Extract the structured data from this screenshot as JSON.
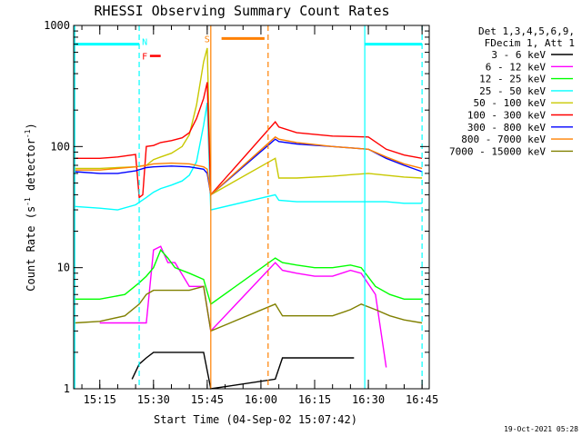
{
  "chart_data": {
    "type": "line",
    "title": "RHESSI Observing Summary Count Rates",
    "xlabel": "Start Time (04-Sep-02 15:07:42)",
    "ylabel": "Count Rate (s⁻¹ detector⁻¹)",
    "ylabel_parts": [
      "Count Rate (s",
      "-1",
      " detector",
      "-1",
      ")"
    ],
    "y_scale": "log",
    "ylim": [
      1,
      1000
    ],
    "y_ticks": [
      1,
      10,
      100,
      1000
    ],
    "y_tick_labels": [
      "1",
      "10",
      "100",
      "1000"
    ],
    "xlim": [
      "15:07:42",
      "16:47:00"
    ],
    "x_ticks": [
      "15:15",
      "15:30",
      "15:45",
      "16:00",
      "16:15",
      "16:30",
      "16:45"
    ],
    "x_tick_labels": [
      "15:15",
      "15:30",
      "15:45",
      "16:00",
      "16:15",
      "16:30",
      "16:45"
    ],
    "grid": false,
    "legend_position": "right",
    "legend_header": [
      "Det 1,3,4,5,6,9,",
      "FDecim 1, Att 1"
    ],
    "series": [
      {
        "name": "3 - 6 keV",
        "color": "#000000",
        "x": [
          "15:24",
          "15:26",
          "15:28",
          "15:30",
          "15:35",
          "15:40",
          "15:44",
          "15:46",
          "16:04",
          "16:06",
          "16:12",
          "16:20",
          "16:26"
        ],
        "y": [
          1.2,
          1.6,
          1.8,
          2.0,
          2.0,
          2.0,
          2.0,
          1.0,
          1.2,
          1.8,
          1.8,
          1.8,
          1.8
        ]
      },
      {
        "name": "6 - 12 keV",
        "color": "#ff00ff",
        "x": [
          "15:15",
          "15:22",
          "15:26",
          "15:28",
          "15:30",
          "15:32",
          "15:34",
          "15:36",
          "15:40",
          "15:44",
          "15:46",
          "16:04",
          "16:06",
          "16:10",
          "16:15",
          "16:20",
          "16:25",
          "16:28",
          "16:32",
          "16:35"
        ],
        "y": [
          3.5,
          3.5,
          3.5,
          3.5,
          14,
          15,
          11,
          11,
          7,
          7,
          3,
          11,
          9.5,
          9,
          8.5,
          8.5,
          9.5,
          9,
          6,
          1.5
        ]
      },
      {
        "name": "12 - 25 keV",
        "color": "#00ff00",
        "x": [
          "15:08",
          "15:15",
          "15:22",
          "15:26",
          "15:28",
          "15:30",
          "15:32",
          "15:34",
          "15:36",
          "15:40",
          "15:44",
          "15:46",
          "16:04",
          "16:06",
          "16:10",
          "16:15",
          "16:20",
          "16:25",
          "16:28",
          "16:32",
          "16:36",
          "16:40",
          "16:45"
        ],
        "y": [
          5.5,
          5.5,
          6,
          7.5,
          8.5,
          10,
          14,
          12,
          10,
          9,
          8,
          5,
          12,
          11,
          10.5,
          10,
          10,
          10.5,
          10,
          7,
          6,
          5.5,
          5.5
        ]
      },
      {
        "name": "25 - 50 keV",
        "color": "#00ffff",
        "x": [
          "15:08",
          "15:15",
          "15:20",
          "15:25",
          "15:28",
          "15:30",
          "15:32",
          "15:35",
          "15:38",
          "15:40",
          "15:42",
          "15:44",
          "15:45",
          "15:46",
          "16:04",
          "16:05",
          "16:10",
          "16:20",
          "16:30",
          "16:35",
          "16:40",
          "16:45"
        ],
        "y": [
          32,
          31,
          30,
          33,
          38,
          42,
          45,
          48,
          52,
          58,
          75,
          150,
          230,
          30,
          40,
          36,
          35,
          35,
          35,
          35,
          34,
          34
        ]
      },
      {
        "name": "50 - 100 keV",
        "color": "#c8c800",
        "x": [
          "15:08",
          "15:15",
          "15:20",
          "15:25",
          "15:28",
          "15:30",
          "15:32",
          "15:35",
          "15:38",
          "15:40",
          "15:42",
          "15:44",
          "15:45",
          "15:46",
          "16:04",
          "16:05",
          "16:10",
          "16:20",
          "16:30",
          "16:35",
          "16:40",
          "16:45"
        ],
        "y": [
          66,
          66,
          67,
          68,
          70,
          78,
          82,
          88,
          100,
          125,
          220,
          500,
          650,
          40,
          80,
          55,
          55,
          57,
          60,
          58,
          56,
          55
        ]
      },
      {
        "name": "100 - 300 keV",
        "color": "#ff0000",
        "x": [
          "15:08",
          "15:15",
          "15:20",
          "15:25",
          "15:26",
          "15:27",
          "15:28",
          "15:30",
          "15:32",
          "15:35",
          "15:38",
          "15:40",
          "15:42",
          "15:44",
          "15:45",
          "15:46",
          "16:04",
          "16:05",
          "16:10",
          "16:20",
          "16:30",
          "16:35",
          "16:40",
          "16:45"
        ],
        "y": [
          80,
          80,
          82,
          86,
          38,
          40,
          100,
          102,
          108,
          112,
          118,
          130,
          170,
          250,
          340,
          40,
          160,
          145,
          130,
          122,
          120,
          95,
          85,
          80
        ]
      },
      {
        "name": "300 - 800 keV",
        "color": "#0000ff",
        "x": [
          "15:08",
          "15:15",
          "15:20",
          "15:25",
          "15:28",
          "15:30",
          "15:35",
          "15:40",
          "15:44",
          "15:45",
          "15:46",
          "16:04",
          "16:05",
          "16:10",
          "16:20",
          "16:30",
          "16:35",
          "16:40",
          "16:45"
        ],
        "y": [
          62,
          60,
          60,
          63,
          67,
          68,
          69,
          68,
          65,
          60,
          40,
          115,
          110,
          105,
          100,
          95,
          80,
          70,
          62
        ]
      },
      {
        "name": "800 - 7000 keV",
        "color": "#ff8000",
        "x": [
          "15:08",
          "15:15",
          "15:20",
          "15:25",
          "15:28",
          "15:30",
          "15:35",
          "15:40",
          "15:44",
          "15:45",
          "15:46",
          "16:04",
          "16:05",
          "16:10",
          "16:20",
          "16:30",
          "16:35",
          "16:40",
          "16:45"
        ],
        "y": [
          64,
          64,
          66,
          68,
          70,
          72,
          73,
          72,
          68,
          65,
          40,
          120,
          115,
          108,
          100,
          95,
          82,
          72,
          66
        ]
      },
      {
        "name": "7000 - 15000 keV",
        "color": "#808000",
        "x": [
          "15:08",
          "15:15",
          "15:22",
          "15:26",
          "15:28",
          "15:30",
          "15:33",
          "15:36",
          "15:40",
          "15:44",
          "15:46",
          "16:04",
          "16:06",
          "16:10",
          "16:15",
          "16:20",
          "16:25",
          "16:28",
          "16:32",
          "16:36",
          "16:40",
          "16:45"
        ],
        "y": [
          3.5,
          3.6,
          4.0,
          5.0,
          6.0,
          6.5,
          6.5,
          6.5,
          6.5,
          7.0,
          3.0,
          5.0,
          4.0,
          4.0,
          4.0,
          4.0,
          4.5,
          5.0,
          4.5,
          4.0,
          3.7,
          3.5
        ]
      }
    ],
    "annotations": [
      {
        "label": "N",
        "color": "#00ffff"
      },
      {
        "label": "F",
        "color": "#ff0000"
      },
      {
        "label": "S",
        "color": "#ff8000"
      }
    ],
    "night_markers": {
      "color": "#00ffff",
      "solid": [
        "15:08",
        "16:29"
      ],
      "dashed": [
        "15:26",
        "16:45"
      ],
      "bars": [
        [
          "15:08",
          "15:26"
        ],
        [
          "16:29",
          "16:45"
        ]
      ],
      "bar_level": 700
    },
    "saa_markers": {
      "color": "#ff8000",
      "solid": [
        "15:46"
      ],
      "dashed": [
        "16:02"
      ],
      "bars": [
        [
          "15:49",
          "16:01"
        ]
      ],
      "bar_level": 780
    },
    "flare_marker": {
      "color": "#ff0000",
      "x": [
        "15:29",
        "15:32"
      ],
      "level": 560
    }
  },
  "footer": {
    "timestamp": "19-Oct-2021 05:28"
  }
}
